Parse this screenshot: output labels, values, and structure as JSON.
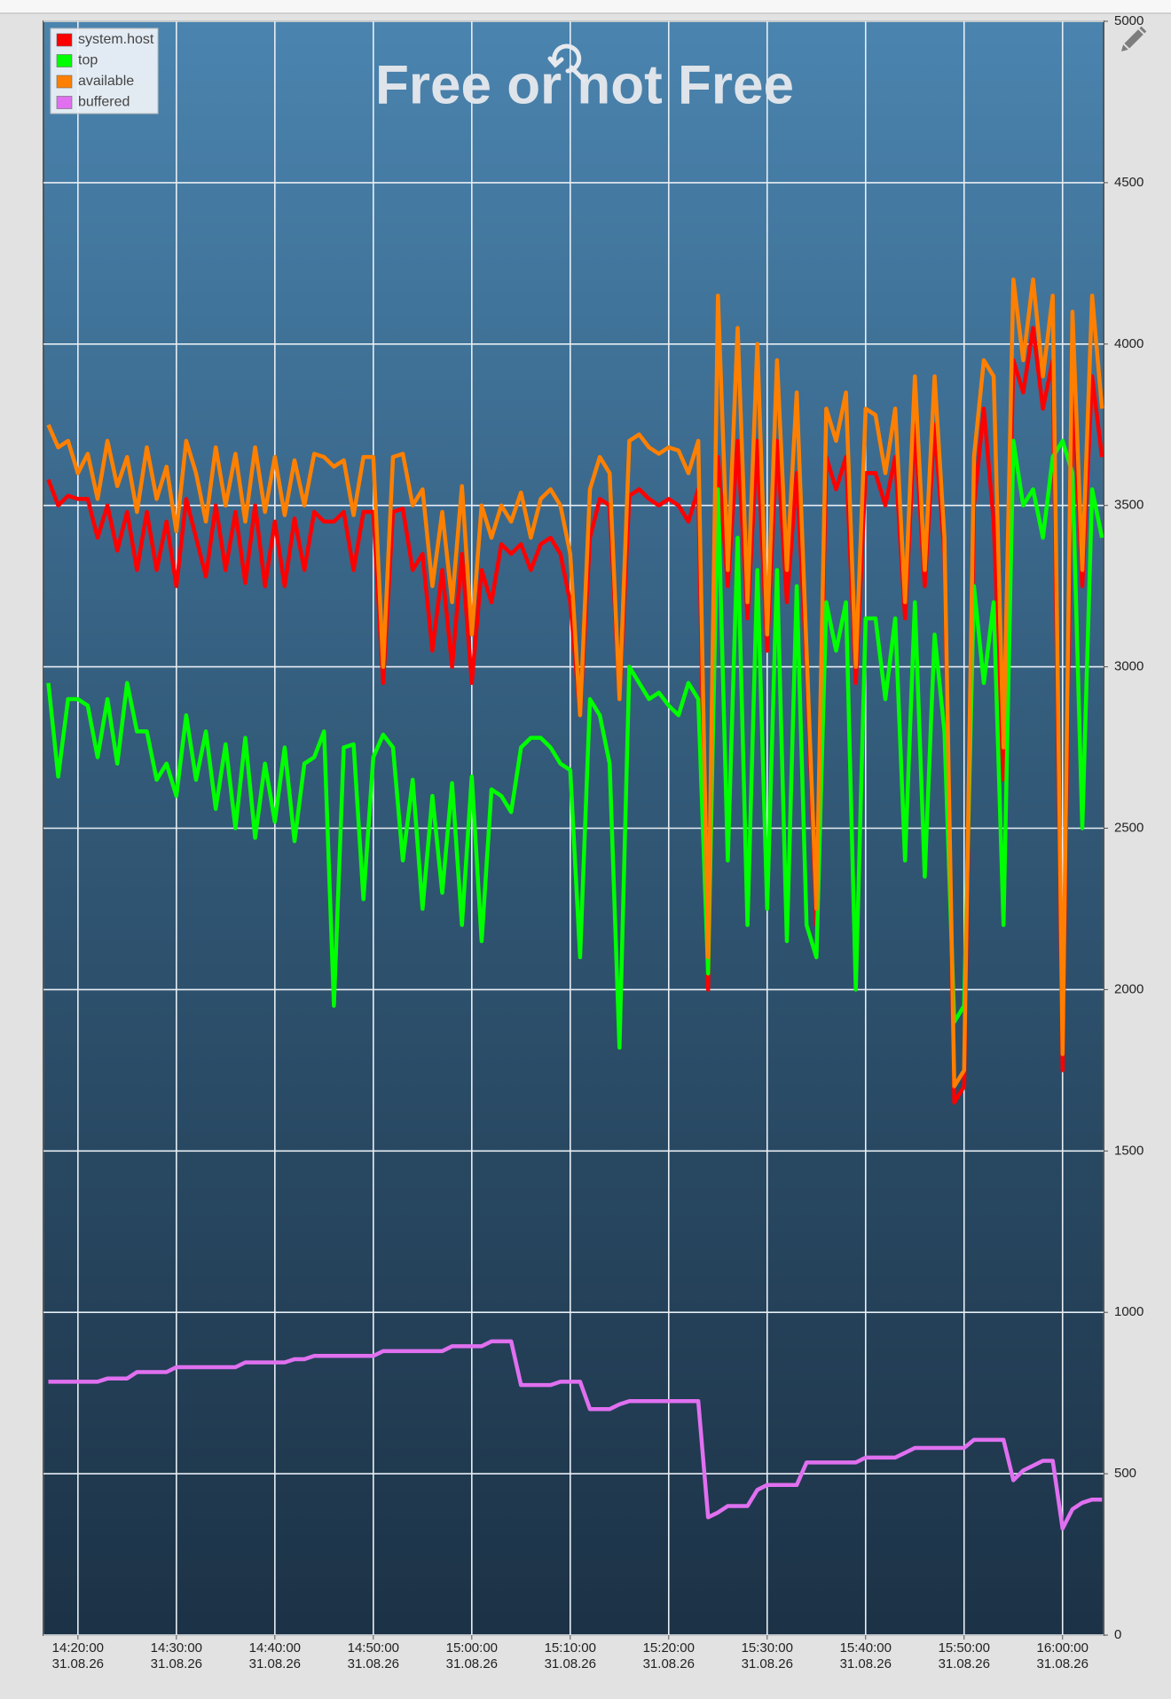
{
  "chart_data": {
    "type": "line",
    "title": "Free or not Free",
    "x": [
      "2026-08-31T14:17:00",
      "2026-08-31T14:18:00",
      "2026-08-31T14:19:00",
      "2026-08-31T14:20:00",
      "2026-08-31T14:21:00",
      "2026-08-31T14:22:00",
      "2026-08-31T14:23:00",
      "2026-08-31T14:24:00",
      "2026-08-31T14:25:00",
      "2026-08-31T14:26:00",
      "2026-08-31T14:27:00",
      "2026-08-31T14:28:00",
      "2026-08-31T14:29:00",
      "2026-08-31T14:30:00",
      "2026-08-31T14:31:00",
      "2026-08-31T14:32:00",
      "2026-08-31T14:33:00",
      "2026-08-31T14:34:00",
      "2026-08-31T14:35:00",
      "2026-08-31T14:36:00",
      "2026-08-31T14:37:00",
      "2026-08-31T14:38:00",
      "2026-08-31T14:39:00",
      "2026-08-31T14:40:00",
      "2026-08-31T14:41:00",
      "2026-08-31T14:42:00",
      "2026-08-31T14:43:00",
      "2026-08-31T14:44:00",
      "2026-08-31T14:45:00",
      "2026-08-31T14:46:00",
      "2026-08-31T14:47:00",
      "2026-08-31T14:48:00",
      "2026-08-31T14:49:00",
      "2026-08-31T14:50:00",
      "2026-08-31T14:51:00",
      "2026-08-31T14:52:00",
      "2026-08-31T14:53:00",
      "2026-08-31T14:54:00",
      "2026-08-31T14:55:00",
      "2026-08-31T14:56:00",
      "2026-08-31T14:57:00",
      "2026-08-31T14:58:00",
      "2026-08-31T14:59:00",
      "2026-08-31T15:00:00",
      "2026-08-31T15:01:00",
      "2026-08-31T15:02:00",
      "2026-08-31T15:03:00",
      "2026-08-31T15:04:00",
      "2026-08-31T15:05:00",
      "2026-08-31T15:06:00",
      "2026-08-31T15:07:00",
      "2026-08-31T15:08:00",
      "2026-08-31T15:09:00",
      "2026-08-31T15:10:00",
      "2026-08-31T15:11:00",
      "2026-08-31T15:12:00",
      "2026-08-31T15:13:00",
      "2026-08-31T15:14:00",
      "2026-08-31T15:15:00",
      "2026-08-31T15:16:00",
      "2026-08-31T15:17:00",
      "2026-08-31T15:18:00",
      "2026-08-31T15:19:00",
      "2026-08-31T15:20:00",
      "2026-08-31T15:21:00",
      "2026-08-31T15:22:00",
      "2026-08-31T15:23:00",
      "2026-08-31T15:24:00",
      "2026-08-31T15:25:00",
      "2026-08-31T15:26:00",
      "2026-08-31T15:27:00",
      "2026-08-31T15:28:00",
      "2026-08-31T15:29:00",
      "2026-08-31T15:30:00",
      "2026-08-31T15:31:00",
      "2026-08-31T15:32:00",
      "2026-08-31T15:33:00",
      "2026-08-31T15:34:00",
      "2026-08-31T15:35:00",
      "2026-08-31T15:36:00",
      "2026-08-31T15:37:00",
      "2026-08-31T15:38:00",
      "2026-08-31T15:39:00",
      "2026-08-31T15:40:00",
      "2026-08-31T15:41:00",
      "2026-08-31T15:42:00",
      "2026-08-31T15:43:00",
      "2026-08-31T15:44:00",
      "2026-08-31T15:45:00",
      "2026-08-31T15:46:00",
      "2026-08-31T15:47:00",
      "2026-08-31T15:48:00",
      "2026-08-31T15:49:00",
      "2026-08-31T15:50:00",
      "2026-08-31T15:51:00",
      "2026-08-31T15:52:00",
      "2026-08-31T15:53:00",
      "2026-08-31T15:54:00",
      "2026-08-31T15:55:00",
      "2026-08-31T15:56:00",
      "2026-08-31T15:57:00",
      "2026-08-31T15:58:00",
      "2026-08-31T15:59:00",
      "2026-08-31T16:00:00",
      "2026-08-31T16:01:00",
      "2026-08-31T16:02:00",
      "2026-08-31T16:03:00",
      "2026-08-31T16:04:00"
    ],
    "series": [
      {
        "name": "system.host",
        "color": "#ff0000",
        "values": [
          3580,
          3500,
          3530,
          3520,
          3520,
          3400,
          3500,
          3360,
          3480,
          3300,
          3480,
          3300,
          3450,
          3250,
          3520,
          3400,
          3280,
          3500,
          3300,
          3480,
          3260,
          3500,
          3250,
          3450,
          3250,
          3460,
          3300,
          3480,
          3450,
          3450,
          3480,
          3300,
          3480,
          3480,
          2950,
          3480,
          3490,
          3300,
          3350,
          3050,
          3300,
          3000,
          3350,
          2950,
          3300,
          3200,
          3380,
          3350,
          3380,
          3300,
          3380,
          3400,
          3350,
          3200,
          2850,
          3400,
          3520,
          3500,
          2900,
          3530,
          3550,
          3520,
          3500,
          3520,
          3500,
          3450,
          3550,
          2000,
          3650,
          3250,
          3700,
          3150,
          3700,
          3050,
          3700,
          3200,
          3600,
          3000,
          2200,
          3650,
          3550,
          3650,
          2950,
          3600,
          3600,
          3500,
          3650,
          3150,
          3750,
          3250,
          3750,
          3350,
          1650,
          1700,
          3500,
          3800,
          3450,
          2650,
          3950,
          3850,
          4050,
          3800,
          3950,
          1750,
          3900,
          3250,
          3900,
          3650
        ]
      },
      {
        "name": "top",
        "color": "#00ff00",
        "values": [
          2950,
          2660,
          2900,
          2900,
          2880,
          2720,
          2900,
          2700,
          2950,
          2800,
          2800,
          2650,
          2700,
          2600,
          2850,
          2650,
          2800,
          2560,
          2760,
          2500,
          2780,
          2470,
          2700,
          2520,
          2750,
          2460,
          2700,
          2720,
          2800,
          1950,
          2750,
          2760,
          2280,
          2720,
          2790,
          2750,
          2400,
          2650,
          2250,
          2600,
          2300,
          2640,
          2200,
          2660,
          2150,
          2620,
          2600,
          2550,
          2750,
          2780,
          2780,
          2750,
          2700,
          2680,
          2100,
          2900,
          2850,
          2700,
          1820,
          3000,
          2950,
          2900,
          2920,
          2880,
          2850,
          2950,
          2900,
          2050,
          3550,
          2400,
          3400,
          2200,
          3300,
          2250,
          3300,
          2150,
          3250,
          2200,
          2100,
          3200,
          3050,
          3200,
          2000,
          3150,
          3150,
          2900,
          3150,
          2400,
          3200,
          2350,
          3100,
          2800,
          1900,
          1950,
          3250,
          2950,
          3200,
          2200,
          3700,
          3500,
          3550,
          3400,
          3650,
          3700,
          3600,
          2500,
          3550,
          3400
        ]
      },
      {
        "name": "available",
        "color": "#ff8000",
        "values": [
          3750,
          3680,
          3700,
          3600,
          3660,
          3520,
          3700,
          3560,
          3650,
          3480,
          3680,
          3520,
          3620,
          3420,
          3700,
          3600,
          3450,
          3680,
          3500,
          3660,
          3450,
          3680,
          3480,
          3650,
          3470,
          3640,
          3500,
          3660,
          3650,
          3620,
          3640,
          3470,
          3650,
          3650,
          3000,
          3650,
          3660,
          3500,
          3550,
          3250,
          3480,
          3200,
          3560,
          3100,
          3500,
          3400,
          3500,
          3450,
          3540,
          3400,
          3520,
          3550,
          3500,
          3350,
          2850,
          3550,
          3650,
          3600,
          2900,
          3700,
          3720,
          3680,
          3660,
          3680,
          3670,
          3600,
          3700,
          2100,
          4150,
          3300,
          4050,
          3200,
          4000,
          3100,
          3950,
          3300,
          3850,
          3050,
          2250,
          3800,
          3700,
          3850,
          3000,
          3800,
          3780,
          3600,
          3800,
          3200,
          3900,
          3300,
          3900,
          3400,
          1700,
          1750,
          3650,
          3950,
          3900,
          2750,
          4200,
          3950,
          4200,
          3900,
          4150,
          1800,
          4100,
          3300,
          4150,
          3800
        ]
      },
      {
        "name": "buffered",
        "color": "#e070f0",
        "values": [
          785,
          785,
          785,
          785,
          785,
          785,
          795,
          795,
          795,
          815,
          815,
          815,
          815,
          830,
          830,
          830,
          830,
          830,
          830,
          830,
          845,
          845,
          845,
          845,
          845,
          855,
          855,
          865,
          865,
          865,
          865,
          865,
          865,
          865,
          880,
          880,
          880,
          880,
          880,
          880,
          880,
          895,
          895,
          895,
          895,
          910,
          910,
          910,
          775,
          775,
          775,
          775,
          785,
          785,
          785,
          700,
          700,
          700,
          715,
          725,
          725,
          725,
          725,
          725,
          725,
          725,
          725,
          365,
          380,
          400,
          400,
          400,
          450,
          465,
          465,
          465,
          465,
          535,
          535,
          535,
          535,
          535,
          535,
          550,
          550,
          550,
          550,
          565,
          580,
          580,
          580,
          580,
          580,
          580,
          605,
          605,
          605,
          605,
          480,
          510,
          525,
          540,
          540,
          330,
          390,
          410,
          420,
          420
        ]
      }
    ],
    "xlim": [
      "2026-08-31T14:16:30",
      "2026-08-31T16:04:10"
    ],
    "xticks": [
      {
        "value": "2026-08-31T14:20:00",
        "label": [
          "14:20:00",
          "31.08.26"
        ]
      },
      {
        "value": "2026-08-31T14:30:00",
        "label": [
          "14:30:00",
          "31.08.26"
        ]
      },
      {
        "value": "2026-08-31T14:40:00",
        "label": [
          "14:40:00",
          "31.08.26"
        ]
      },
      {
        "value": "2026-08-31T14:50:00",
        "label": [
          "14:50:00",
          "31.08.26"
        ]
      },
      {
        "value": "2026-08-31T15:00:00",
        "label": [
          "15:00:00",
          "31.08.26"
        ]
      },
      {
        "value": "2026-08-31T15:10:00",
        "label": [
          "15:10:00",
          "31.08.26"
        ]
      },
      {
        "value": "2026-08-31T15:20:00",
        "label": [
          "15:20:00",
          "31.08.26"
        ]
      },
      {
        "value": "2026-08-31T15:30:00",
        "label": [
          "15:30:00",
          "31.08.26"
        ]
      },
      {
        "value": "2026-08-31T15:40:00",
        "label": [
          "15:40:00",
          "31.08.26"
        ]
      },
      {
        "value": "2026-08-31T15:50:00",
        "label": [
          "15:50:00",
          "31.08.26"
        ]
      },
      {
        "value": "2026-08-31T16:00:00",
        "label": [
          "16:00:00",
          "31.08.26"
        ]
      }
    ],
    "ylim": [
      0,
      5000
    ],
    "yticks": [
      0,
      500,
      1000,
      1500,
      2000,
      2500,
      3000,
      3500,
      4000,
      4500,
      5000
    ],
    "grid": true,
    "legend": "top-left"
  }
}
